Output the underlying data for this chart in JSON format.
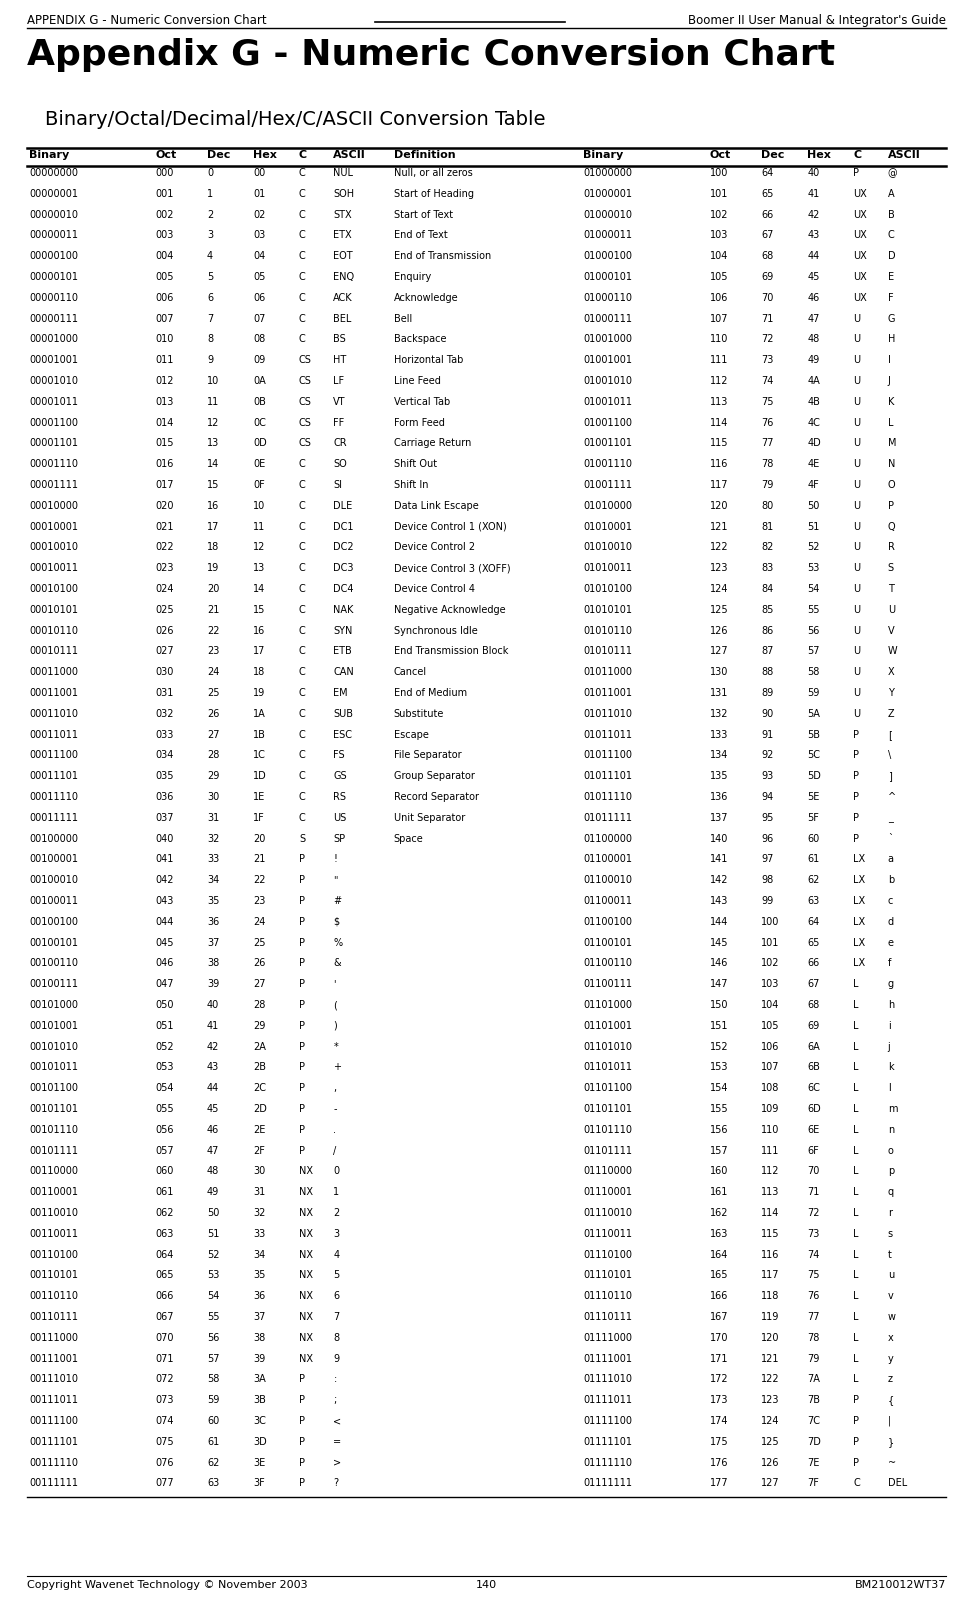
{
  "header_left": "APPENDIX G - Numeric Conversion Chart",
  "header_right": "Boomer II User Manual & Integrator's Guide",
  "title": "Appendix G - Numeric Conversion Chart",
  "subtitle": "Binary/Octal/Decimal/Hex/C/ASCII Conversion Table",
  "footer_left": "Copyright Wavenet Technology © November 2003",
  "footer_center": "140",
  "footer_right": "BM210012WT37",
  "col_headers": [
    "Binary",
    "Oct",
    "Dec",
    "Hex",
    "C",
    "ASCII",
    "Definition",
    "Binary",
    "Oct",
    "Dec",
    "Hex",
    "C",
    "ASCII"
  ],
  "rows": [
    [
      "00000000",
      "000",
      "0",
      "00",
      "C",
      "NUL",
      "Null, or all zeros",
      "01000000",
      "100",
      "64",
      "40",
      "P",
      "@"
    ],
    [
      "00000001",
      "001",
      "1",
      "01",
      "C",
      "SOH",
      "Start of Heading",
      "01000001",
      "101",
      "65",
      "41",
      "UX",
      "A"
    ],
    [
      "00000010",
      "002",
      "2",
      "02",
      "C",
      "STX",
      "Start of Text",
      "01000010",
      "102",
      "66",
      "42",
      "UX",
      "B"
    ],
    [
      "00000011",
      "003",
      "3",
      "03",
      "C",
      "ETX",
      "End of Text",
      "01000011",
      "103",
      "67",
      "43",
      "UX",
      "C"
    ],
    [
      "00000100",
      "004",
      "4",
      "04",
      "C",
      "EOT",
      "End of Transmission",
      "01000100",
      "104",
      "68",
      "44",
      "UX",
      "D"
    ],
    [
      "00000101",
      "005",
      "5",
      "05",
      "C",
      "ENQ",
      "Enquiry",
      "01000101",
      "105",
      "69",
      "45",
      "UX",
      "E"
    ],
    [
      "00000110",
      "006",
      "6",
      "06",
      "C",
      "ACK",
      "Acknowledge",
      "01000110",
      "106",
      "70",
      "46",
      "UX",
      "F"
    ],
    [
      "00000111",
      "007",
      "7",
      "07",
      "C",
      "BEL",
      "Bell",
      "01000111",
      "107",
      "71",
      "47",
      "U",
      "G"
    ],
    [
      "00001000",
      "010",
      "8",
      "08",
      "C",
      "BS",
      "Backspace",
      "01001000",
      "110",
      "72",
      "48",
      "U",
      "H"
    ],
    [
      "00001001",
      "011",
      "9",
      "09",
      "CS",
      "HT",
      "Horizontal Tab",
      "01001001",
      "111",
      "73",
      "49",
      "U",
      "I"
    ],
    [
      "00001010",
      "012",
      "10",
      "0A",
      "CS",
      "LF",
      "Line Feed",
      "01001010",
      "112",
      "74",
      "4A",
      "U",
      "J"
    ],
    [
      "00001011",
      "013",
      "11",
      "0B",
      "CS",
      "VT",
      "Vertical Tab",
      "01001011",
      "113",
      "75",
      "4B",
      "U",
      "K"
    ],
    [
      "00001100",
      "014",
      "12",
      "0C",
      "CS",
      "FF",
      "Form Feed",
      "01001100",
      "114",
      "76",
      "4C",
      "U",
      "L"
    ],
    [
      "00001101",
      "015",
      "13",
      "0D",
      "CS",
      "CR",
      "Carriage Return",
      "01001101",
      "115",
      "77",
      "4D",
      "U",
      "M"
    ],
    [
      "00001110",
      "016",
      "14",
      "0E",
      "C",
      "SO",
      "Shift Out",
      "01001110",
      "116",
      "78",
      "4E",
      "U",
      "N"
    ],
    [
      "00001111",
      "017",
      "15",
      "0F",
      "C",
      "SI",
      "Shift In",
      "01001111",
      "117",
      "79",
      "4F",
      "U",
      "O"
    ],
    [
      "00010000",
      "020",
      "16",
      "10",
      "C",
      "DLE",
      "Data Link Escape",
      "01010000",
      "120",
      "80",
      "50",
      "U",
      "P"
    ],
    [
      "00010001",
      "021",
      "17",
      "11",
      "C",
      "DC1",
      "Device Control 1 (XON)",
      "01010001",
      "121",
      "81",
      "51",
      "U",
      "Q"
    ],
    [
      "00010010",
      "022",
      "18",
      "12",
      "C",
      "DC2",
      "Device Control 2",
      "01010010",
      "122",
      "82",
      "52",
      "U",
      "R"
    ],
    [
      "00010011",
      "023",
      "19",
      "13",
      "C",
      "DC3",
      "Device Control 3 (XOFF)",
      "01010011",
      "123",
      "83",
      "53",
      "U",
      "S"
    ],
    [
      "00010100",
      "024",
      "20",
      "14",
      "C",
      "DC4",
      "Device Control 4",
      "01010100",
      "124",
      "84",
      "54",
      "U",
      "T"
    ],
    [
      "00010101",
      "025",
      "21",
      "15",
      "C",
      "NAK",
      "Negative Acknowledge",
      "01010101",
      "125",
      "85",
      "55",
      "U",
      "U"
    ],
    [
      "00010110",
      "026",
      "22",
      "16",
      "C",
      "SYN",
      "Synchronous Idle",
      "01010110",
      "126",
      "86",
      "56",
      "U",
      "V"
    ],
    [
      "00010111",
      "027",
      "23",
      "17",
      "C",
      "ETB",
      "End Transmission Block",
      "01010111",
      "127",
      "87",
      "57",
      "U",
      "W"
    ],
    [
      "00011000",
      "030",
      "24",
      "18",
      "C",
      "CAN",
      "Cancel",
      "01011000",
      "130",
      "88",
      "58",
      "U",
      "X"
    ],
    [
      "00011001",
      "031",
      "25",
      "19",
      "C",
      "EM",
      "End of Medium",
      "01011001",
      "131",
      "89",
      "59",
      "U",
      "Y"
    ],
    [
      "00011010",
      "032",
      "26",
      "1A",
      "C",
      "SUB",
      "Substitute",
      "01011010",
      "132",
      "90",
      "5A",
      "U",
      "Z"
    ],
    [
      "00011011",
      "033",
      "27",
      "1B",
      "C",
      "ESC",
      "Escape",
      "01011011",
      "133",
      "91",
      "5B",
      "P",
      "["
    ],
    [
      "00011100",
      "034",
      "28",
      "1C",
      "C",
      "FS",
      "File Separator",
      "01011100",
      "134",
      "92",
      "5C",
      "P",
      "\\"
    ],
    [
      "00011101",
      "035",
      "29",
      "1D",
      "C",
      "GS",
      "Group Separator",
      "01011101",
      "135",
      "93",
      "5D",
      "P",
      "]"
    ],
    [
      "00011110",
      "036",
      "30",
      "1E",
      "C",
      "RS",
      "Record Separator",
      "01011110",
      "136",
      "94",
      "5E",
      "P",
      "^"
    ],
    [
      "00011111",
      "037",
      "31",
      "1F",
      "C",
      "US",
      "Unit Separator",
      "01011111",
      "137",
      "95",
      "5F",
      "P",
      "_"
    ],
    [
      "00100000",
      "040",
      "32",
      "20",
      "S",
      "SP",
      "Space",
      "01100000",
      "140",
      "96",
      "60",
      "P",
      "`"
    ],
    [
      "00100001",
      "041",
      "33",
      "21",
      "P",
      "!",
      "",
      "01100001",
      "141",
      "97",
      "61",
      "LX",
      "a"
    ],
    [
      "00100010",
      "042",
      "34",
      "22",
      "P",
      "\"",
      "",
      "01100010",
      "142",
      "98",
      "62",
      "LX",
      "b"
    ],
    [
      "00100011",
      "043",
      "35",
      "23",
      "P",
      "#",
      "",
      "01100011",
      "143",
      "99",
      "63",
      "LX",
      "c"
    ],
    [
      "00100100",
      "044",
      "36",
      "24",
      "P",
      "$",
      "",
      "01100100",
      "144",
      "100",
      "64",
      "LX",
      "d"
    ],
    [
      "00100101",
      "045",
      "37",
      "25",
      "P",
      "%",
      "",
      "01100101",
      "145",
      "101",
      "65",
      "LX",
      "e"
    ],
    [
      "00100110",
      "046",
      "38",
      "26",
      "P",
      "&",
      "",
      "01100110",
      "146",
      "102",
      "66",
      "LX",
      "f"
    ],
    [
      "00100111",
      "047",
      "39",
      "27",
      "P",
      "'",
      "",
      "01100111",
      "147",
      "103",
      "67",
      "L",
      "g"
    ],
    [
      "00101000",
      "050",
      "40",
      "28",
      "P",
      "(",
      "",
      "01101000",
      "150",
      "104",
      "68",
      "L",
      "h"
    ],
    [
      "00101001",
      "051",
      "41",
      "29",
      "P",
      ")",
      "",
      "01101001",
      "151",
      "105",
      "69",
      "L",
      "i"
    ],
    [
      "00101010",
      "052",
      "42",
      "2A",
      "P",
      "*",
      "",
      "01101010",
      "152",
      "106",
      "6A",
      "L",
      "j"
    ],
    [
      "00101011",
      "053",
      "43",
      "2B",
      "P",
      "+",
      "",
      "01101011",
      "153",
      "107",
      "6B",
      "L",
      "k"
    ],
    [
      "00101100",
      "054",
      "44",
      "2C",
      "P",
      ",",
      "",
      "01101100",
      "154",
      "108",
      "6C",
      "L",
      "l"
    ],
    [
      "00101101",
      "055",
      "45",
      "2D",
      "P",
      "-",
      "",
      "01101101",
      "155",
      "109",
      "6D",
      "L",
      "m"
    ],
    [
      "00101110",
      "056",
      "46",
      "2E",
      "P",
      ".",
      "",
      "01101110",
      "156",
      "110",
      "6E",
      "L",
      "n"
    ],
    [
      "00101111",
      "057",
      "47",
      "2F",
      "P",
      "/",
      "",
      "01101111",
      "157",
      "111",
      "6F",
      "L",
      "o"
    ],
    [
      "00110000",
      "060",
      "48",
      "30",
      "NX",
      "0",
      "",
      "01110000",
      "160",
      "112",
      "70",
      "L",
      "p"
    ],
    [
      "00110001",
      "061",
      "49",
      "31",
      "NX",
      "1",
      "",
      "01110001",
      "161",
      "113",
      "71",
      "L",
      "q"
    ],
    [
      "00110010",
      "062",
      "50",
      "32",
      "NX",
      "2",
      "",
      "01110010",
      "162",
      "114",
      "72",
      "L",
      "r"
    ],
    [
      "00110011",
      "063",
      "51",
      "33",
      "NX",
      "3",
      "",
      "01110011",
      "163",
      "115",
      "73",
      "L",
      "s"
    ],
    [
      "00110100",
      "064",
      "52",
      "34",
      "NX",
      "4",
      "",
      "01110100",
      "164",
      "116",
      "74",
      "L",
      "t"
    ],
    [
      "00110101",
      "065",
      "53",
      "35",
      "NX",
      "5",
      "",
      "01110101",
      "165",
      "117",
      "75",
      "L",
      "u"
    ],
    [
      "00110110",
      "066",
      "54",
      "36",
      "NX",
      "6",
      "",
      "01110110",
      "166",
      "118",
      "76",
      "L",
      "v"
    ],
    [
      "00110111",
      "067",
      "55",
      "37",
      "NX",
      "7",
      "",
      "01110111",
      "167",
      "119",
      "77",
      "L",
      "w"
    ],
    [
      "00111000",
      "070",
      "56",
      "38",
      "NX",
      "8",
      "",
      "01111000",
      "170",
      "120",
      "78",
      "L",
      "x"
    ],
    [
      "00111001",
      "071",
      "57",
      "39",
      "NX",
      "9",
      "",
      "01111001",
      "171",
      "121",
      "79",
      "L",
      "y"
    ],
    [
      "00111010",
      "072",
      "58",
      "3A",
      "P",
      ":",
      "",
      "01111010",
      "172",
      "122",
      "7A",
      "L",
      "z"
    ],
    [
      "00111011",
      "073",
      "59",
      "3B",
      "P",
      ";",
      "",
      "01111011",
      "173",
      "123",
      "7B",
      "P",
      "{"
    ],
    [
      "00111100",
      "074",
      "60",
      "3C",
      "P",
      "<",
      "",
      "01111100",
      "174",
      "124",
      "7C",
      "P",
      "|"
    ],
    [
      "00111101",
      "075",
      "61",
      "3D",
      "P",
      "=",
      "",
      "01111101",
      "175",
      "125",
      "7D",
      "P",
      "}"
    ],
    [
      "00111110",
      "076",
      "62",
      "3E",
      "P",
      ">",
      "",
      "01111110",
      "176",
      "126",
      "7E",
      "P",
      "~"
    ],
    [
      "00111111",
      "077",
      "63",
      "3F",
      "P",
      "?",
      "",
      "01111111",
      "177",
      "127",
      "7F",
      "C",
      "DEL"
    ]
  ],
  "bg_color": "#ffffff",
  "table_font_size": 7.0,
  "header_font_size": 8.0,
  "page_header_fontsize": 8.5,
  "title_fontsize": 26,
  "subtitle_fontsize": 14
}
